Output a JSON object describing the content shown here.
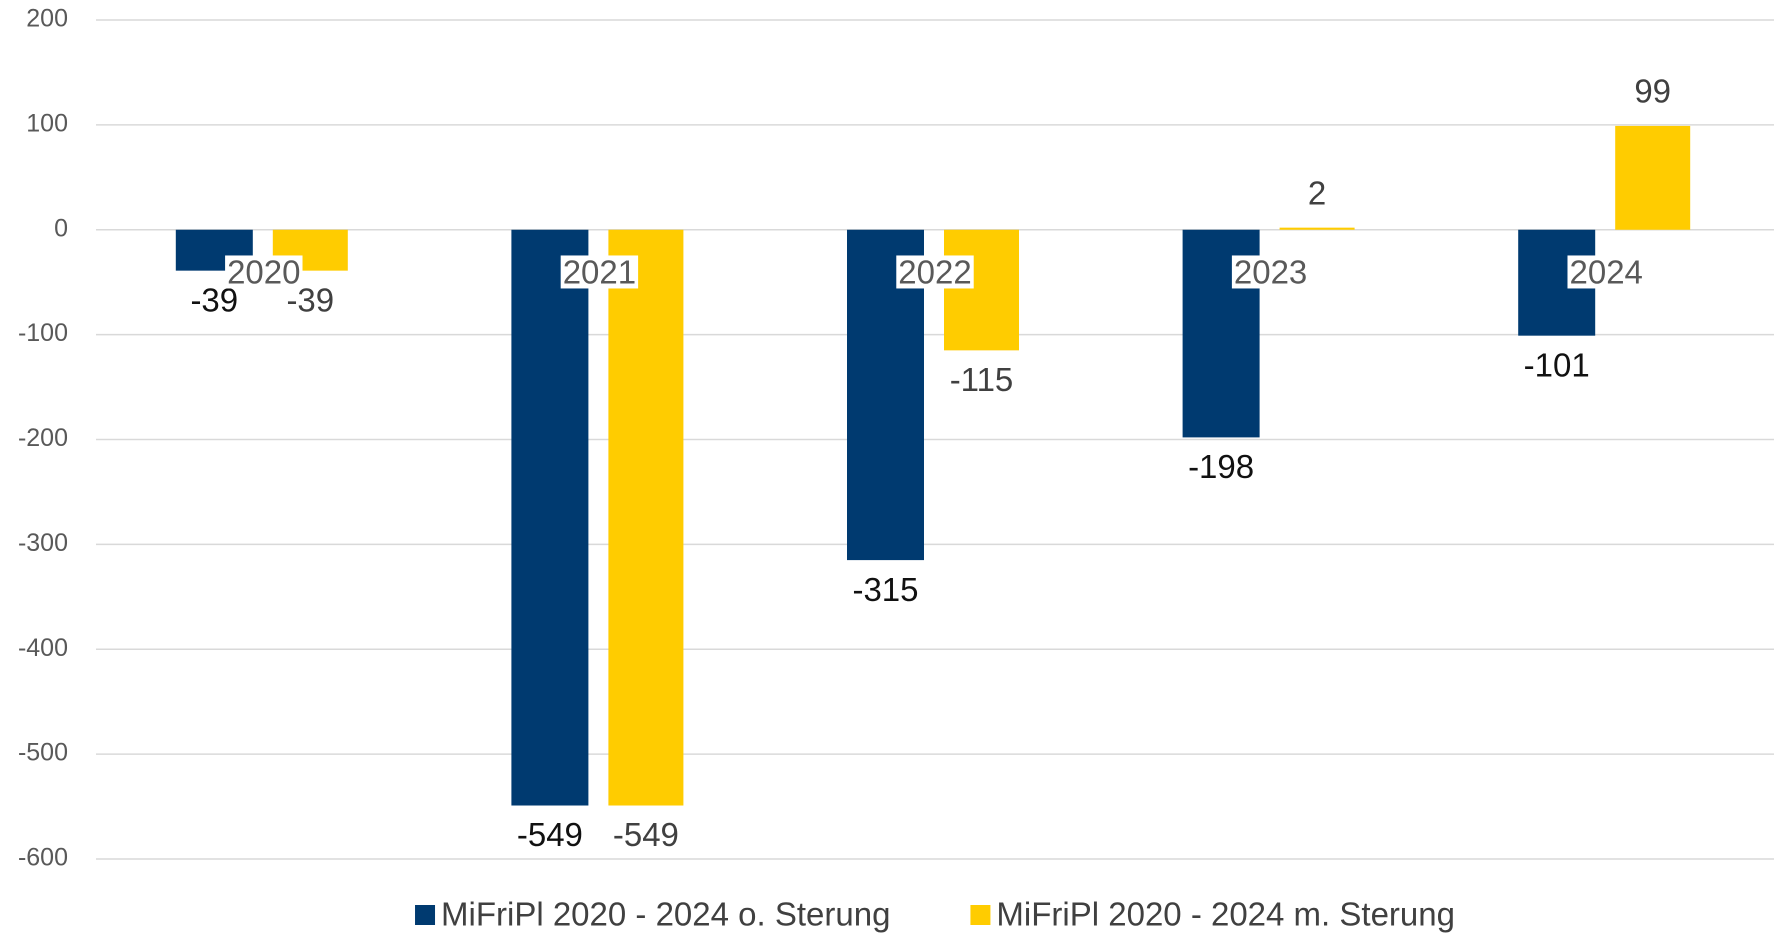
{
  "chart_data": {
    "type": "bar",
    "categories": [
      "2020",
      "2021",
      "2022",
      "2023",
      "2024"
    ],
    "series": [
      {
        "name": "MiFriPl 2020 - 2024 o. Sterung",
        "color": "#003a70",
        "values": [
          -39,
          -549,
          -315,
          -198,
          -101
        ]
      },
      {
        "name": "MiFriPl 2020 - 2024 m. Sterung",
        "color": "#ffcc00",
        "values": [
          -39,
          -549,
          -115,
          2,
          99
        ]
      }
    ],
    "ylim": [
      -600,
      200
    ],
    "yticks": [
      -600,
      -500,
      -400,
      -300,
      -200,
      -100,
      0,
      100,
      200
    ],
    "grid": true,
    "legend": "bottom"
  }
}
